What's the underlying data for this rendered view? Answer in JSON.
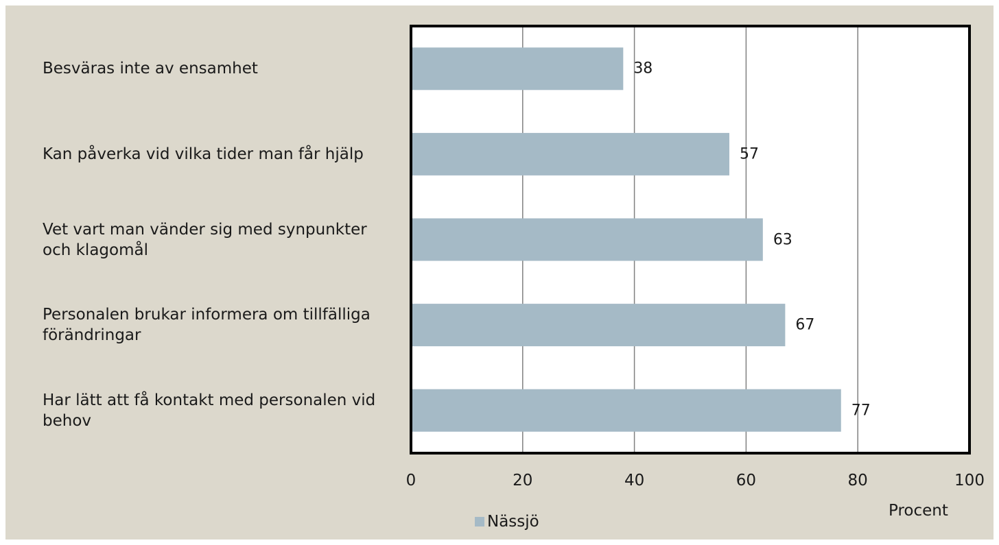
{
  "chart_data": {
    "type": "bar",
    "orientation": "horizontal",
    "categories": [
      "Besväras inte av ensamhet",
      "Kan påverka vid vilka tider man får hjälp",
      "Vet vart man vänder sig med synpunkter och klagomål",
      "Personalen brukar informera om tillfälliga förändringar",
      "Har lätt att få kontakt med personalen vid behov"
    ],
    "series": [
      {
        "name": "Nässjö",
        "values": [
          38,
          57,
          63,
          67,
          77
        ],
        "color": "#a5bac6"
      }
    ],
    "xlim": [
      0,
      100
    ],
    "xticks": [
      "0",
      "20",
      "40",
      "60",
      "80",
      "100"
    ],
    "xlabel": "Procent",
    "grid": true,
    "legend_position": "bottom"
  }
}
